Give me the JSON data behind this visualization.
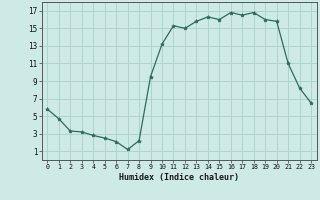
{
  "x_values": [
    0,
    1,
    2,
    3,
    4,
    5,
    6,
    7,
    8,
    9,
    10,
    11,
    12,
    13,
    14,
    15,
    16,
    17,
    18,
    19,
    20,
    21,
    22,
    23
  ],
  "y_values": [
    5.8,
    4.7,
    3.3,
    3.2,
    2.8,
    2.5,
    2.1,
    1.2,
    2.2,
    9.5,
    13.2,
    15.3,
    15.0,
    15.8,
    16.3,
    16.0,
    16.8,
    16.5,
    16.8,
    16.0,
    15.8,
    11.0,
    8.2,
    6.5
  ],
  "xlabel": "Humidex (Indice chaleur)",
  "xlim": [
    -0.5,
    23.5
  ],
  "ylim": [
    0,
    18
  ],
  "yticks": [
    1,
    3,
    5,
    7,
    9,
    11,
    13,
    15,
    17
  ],
  "xtick_labels": [
    "0",
    "1",
    "2",
    "3",
    "4",
    "5",
    "6",
    "7",
    "8",
    "9",
    "10",
    "11",
    "12",
    "13",
    "14",
    "15",
    "16",
    "17",
    "18",
    "19",
    "20",
    "21",
    "22",
    "23"
  ],
  "line_color": "#2d6b5e",
  "bg_color": "#ceeae6",
  "grid_color": "#afd4ce",
  "axis_color": "#555555"
}
